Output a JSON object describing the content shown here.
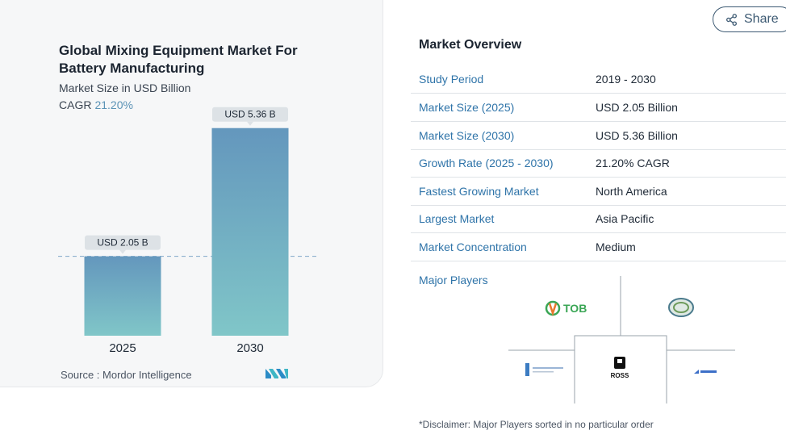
{
  "share": {
    "label": "Share",
    "icon": "share-icon"
  },
  "chart_data": {
    "type": "bar",
    "title": "Global Mixing Equipment Market For Battery Manufacturing",
    "subtitle": "Market Size in USD Billion",
    "cagr_label": "CAGR",
    "cagr_value": "21.20%",
    "categories": [
      "2025",
      "2030"
    ],
    "values": [
      2.05,
      5.36
    ],
    "value_labels": [
      "USD 2.05 B",
      "USD 5.36 B"
    ],
    "ylim": [
      0,
      6.5
    ],
    "reference_line_at": 2.05,
    "bar_color_top": "#6497bd",
    "bar_color_bottom": "#80c6c8",
    "source": "Source :  Mordor Intelligence"
  },
  "overview": {
    "title": "Market Overview",
    "rows": [
      {
        "key": "Study Period",
        "value": "2019 - 2030"
      },
      {
        "key": "Market Size (2025)",
        "value": "USD 2.05 Billion"
      },
      {
        "key": "Market Size (2030)",
        "value": "USD 5.36 Billion"
      },
      {
        "key": "Growth Rate (2025 - 2030)",
        "value": "21.20% CAGR"
      },
      {
        "key": "Fastest Growing Market",
        "value": "North America"
      },
      {
        "key": "Largest Market",
        "value": "Asia Pacific"
      },
      {
        "key": "Market Concentration",
        "value": "Medium"
      }
    ],
    "players_label": "Major Players",
    "players": [
      "TOB",
      "ROSS"
    ],
    "disclaimer": "*Disclaimer: Major Players sorted in no particular order"
  }
}
